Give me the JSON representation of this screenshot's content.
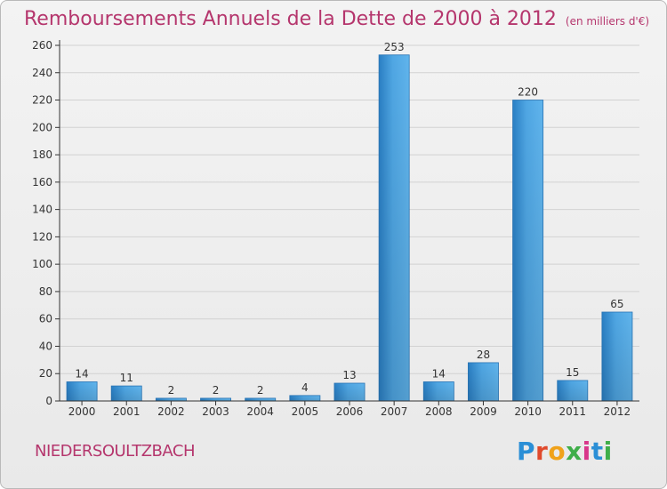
{
  "header": {
    "title": "Remboursements Annuels de la Dette de 2000 à 2012",
    "unit": "(en milliers d'€)"
  },
  "footer": {
    "commune": "NIEDERSOULTZBACH",
    "logo_text": "Proxiti",
    "logo_colors": [
      "#2b8fd6",
      "#e04a2c",
      "#f0a21a",
      "#3fae49",
      "#d8378a",
      "#2b8fd6",
      "#3fae49"
    ]
  },
  "chart_data": {
    "type": "bar",
    "categories": [
      "2000",
      "2001",
      "2002",
      "2003",
      "2004",
      "2005",
      "2006",
      "2007",
      "2008",
      "2009",
      "2010",
      "2011",
      "2012"
    ],
    "values": [
      14,
      11,
      2,
      2,
      2,
      4,
      13,
      253,
      14,
      28,
      220,
      15,
      65
    ],
    "data_labels": [
      "14",
      "11",
      "2",
      "2",
      "2",
      "4",
      "13",
      "253",
      "14",
      "28",
      "220",
      "15",
      "65"
    ],
    "ylim": [
      0,
      260
    ],
    "yticks": [
      0,
      20,
      40,
      60,
      80,
      100,
      120,
      140,
      160,
      180,
      200,
      220,
      240,
      260
    ],
    "grid": true,
    "colors": {
      "bar": "#3d96d8",
      "bar_light": "#5eb3ea",
      "bar_dark": "#2a78bb",
      "grid": "#d2d2d2",
      "axis": "#333333",
      "text": "#333333"
    }
  }
}
